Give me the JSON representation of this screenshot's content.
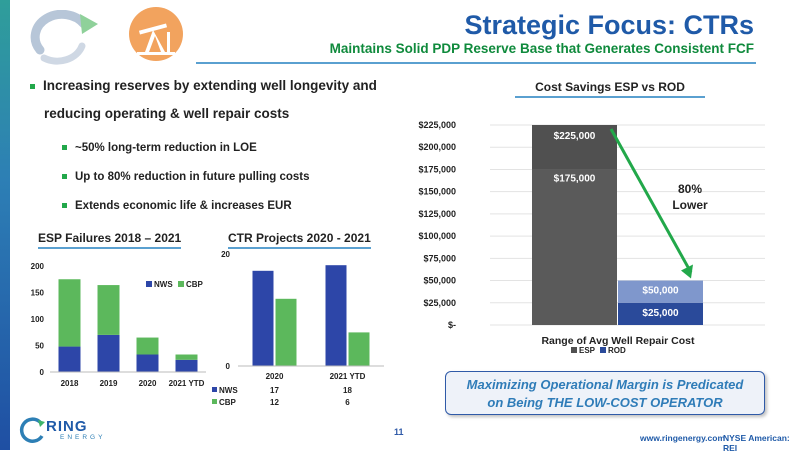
{
  "header": {
    "title": "Strategic Focus: CTRs",
    "subtitle": "Maintains Solid PDP Reserve Base that Generates Consistent FCF"
  },
  "bullets": {
    "main_line1": "Increasing reserves by extending well longevity and",
    "main_line2": "reducing operating & well repair costs",
    "sub": [
      "~50% long-term reduction in LOE",
      "Up to 80% reduction in future pulling costs",
      "Extends economic life & increases EUR"
    ]
  },
  "banner": {
    "line1": "Maximizing Operational Margin is Predicated",
    "line2": "on Being THE LOW-COST OPERATOR"
  },
  "footer": {
    "page_number": "11",
    "website": "www.ringenergy.com",
    "exchange": "NYSE American: REI",
    "logo_text": "RING",
    "logo_subtext": "ENERGY"
  },
  "colors": {
    "nws": "#2d46a8",
    "cbp": "#5cb85c",
    "esp": "#505050",
    "rod_top": "#7f97cc",
    "rod_bottom": "#2a4a9a",
    "arrow": "#22a84a",
    "title": "#1f5aa8",
    "subtitle": "#0f8a3c"
  },
  "chart_data": [
    {
      "type": "bar",
      "stacked": true,
      "title": "ESP Failures 2018 – 2021",
      "categories": [
        "2018",
        "2019",
        "2020",
        "2021 YTD"
      ],
      "series": [
        {
          "name": "NWS",
          "values": [
            48,
            70,
            33,
            23
          ]
        },
        {
          "name": "CBP",
          "values": [
            127,
            94,
            32,
            10
          ]
        }
      ],
      "ylim": [
        0,
        200
      ],
      "yticks": [
        "0",
        "50",
        "100",
        "150",
        "200"
      ],
      "legend": "top-right",
      "grid": false
    },
    {
      "type": "bar",
      "stacked": false,
      "title": "CTR Projects 2020 - 2021",
      "categories": [
        "2020",
        "2021 YTD"
      ],
      "series": [
        {
          "name": "NWS",
          "values": [
            17,
            18
          ]
        },
        {
          "name": "CBP",
          "values": [
            12,
            6
          ]
        }
      ],
      "ylim": [
        0,
        20
      ],
      "yticks": [
        "0",
        "20"
      ],
      "legend": "data-table",
      "grid": false
    },
    {
      "type": "bar",
      "stacked": true,
      "title": "Cost Savings ESP vs ROD",
      "xlabel": "Range of Avg Well Repair Cost",
      "series": [
        {
          "name": "ESP",
          "values": [
            175000,
            50000
          ],
          "labels": [
            "$175,000",
            "$225,000"
          ]
        },
        {
          "name": "ROD",
          "values": [
            25000,
            25000
          ],
          "labels": [
            "$25,000",
            "$50,000"
          ]
        }
      ],
      "ylim": [
        0,
        225000
      ],
      "yticks": [
        "$-",
        "$25,000",
        "$50,000",
        "$75,000",
        "$100,000",
        "$125,000",
        "$150,000",
        "$175,000",
        "$200,000",
        "$225,000"
      ],
      "annotation": {
        "line1": "80%",
        "line2": "Lower"
      },
      "legend": "bottom",
      "grid": true
    }
  ]
}
